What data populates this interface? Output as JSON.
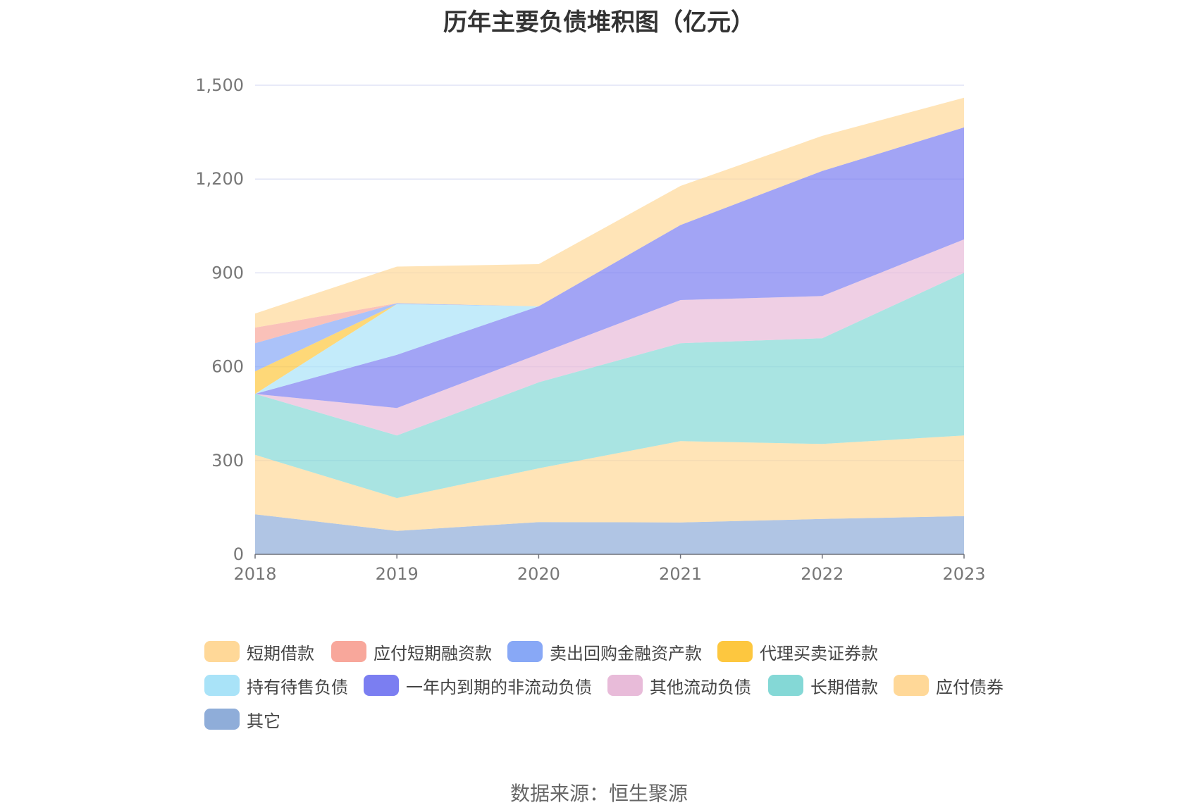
{
  "chart_data": {
    "type": "area",
    "stacked": true,
    "title": "历年主要负债堆积图（亿元）",
    "source": "数据来源：恒生聚源",
    "x": [
      "2018",
      "2019",
      "2020",
      "2021",
      "2022",
      "2023"
    ],
    "ylim": [
      0,
      1500
    ],
    "yticks": [
      "0",
      "300",
      "600",
      "900",
      "1,200",
      "1,500"
    ],
    "grid": true,
    "legend_position": "bottom",
    "series": [
      {
        "name": "其它",
        "color": "#8fadd9",
        "values": [
          128,
          75,
          103,
          102,
          113,
          122
        ]
      },
      {
        "name": "应付债券",
        "color": "#ffd898",
        "values": [
          190,
          105,
          172,
          260,
          240,
          258
        ]
      },
      {
        "name": "长期借款",
        "color": "#84d8d6",
        "values": [
          195,
          200,
          275,
          313,
          338,
          520
        ]
      },
      {
        "name": "其他流动负债",
        "color": "#e8bbd9",
        "values": [
          0,
          88,
          90,
          138,
          135,
          107
        ]
      },
      {
        "name": "一年内到期的非流动负债",
        "color": "#7b7ef1",
        "values": [
          0,
          170,
          153,
          240,
          400,
          358
        ]
      },
      {
        "name": "持有待售负债",
        "color": "#a9e3f8",
        "values": [
          0,
          162,
          0,
          0,
          0,
          0
        ]
      },
      {
        "name": "代理买卖证券款",
        "color": "#fdc73f",
        "values": [
          72,
          0,
          0,
          0,
          0,
          0
        ]
      },
      {
        "name": "卖出回购金融资产款",
        "color": "#88a8f6",
        "values": [
          90,
          3,
          0,
          0,
          0,
          0
        ]
      },
      {
        "name": "应付短期融资款",
        "color": "#f8a79b",
        "values": [
          50,
          0,
          0,
          0,
          0,
          0
        ]
      },
      {
        "name": "短期借款",
        "color": "#ffd898",
        "values": [
          45,
          117,
          135,
          125,
          112,
          95
        ]
      }
    ]
  },
  "legend": [
    {
      "label": "短期借款",
      "color": "#ffd898"
    },
    {
      "label": "应付短期融资款",
      "color": "#f8a79b"
    },
    {
      "label": "卖出回购金融资产款",
      "color": "#88a8f6"
    },
    {
      "label": "代理买卖证券款",
      "color": "#fdc73f"
    },
    {
      "label": "持有待售负债",
      "color": "#a9e3f8"
    },
    {
      "label": "一年内到期的非流动负债",
      "color": "#7b7ef1"
    },
    {
      "label": "其他流动负债",
      "color": "#e8bbd9"
    },
    {
      "label": "长期借款",
      "color": "#84d8d6"
    },
    {
      "label": "应付债券",
      "color": "#ffd898"
    },
    {
      "label": "其它",
      "color": "#8fadd9"
    }
  ]
}
